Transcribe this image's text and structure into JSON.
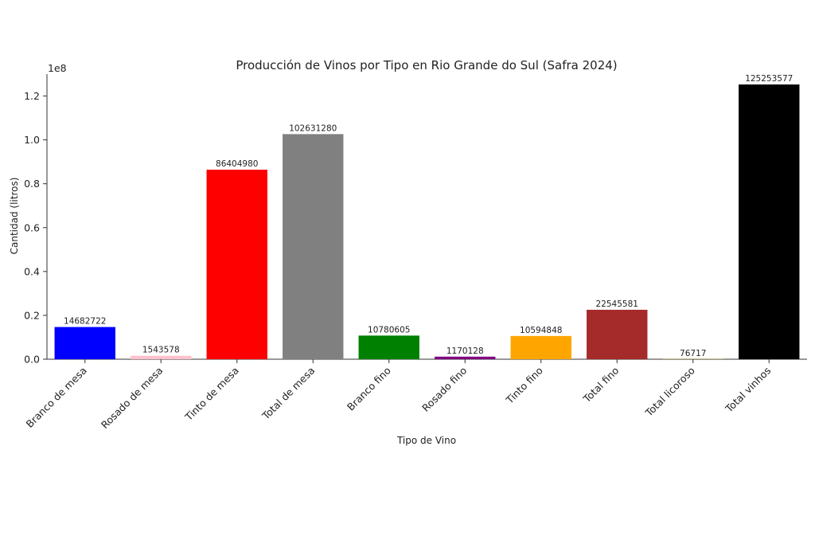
{
  "chart_data": {
    "type": "bar",
    "title": "Producción de Vinos por Tipo en Rio Grande do Sul (Safra 2024)",
    "xlabel": "Tipo de Vino",
    "ylabel": "Cantidad (litros)",
    "y_multiplier_label": "1e8",
    "ylim": [
      0,
      130000000
    ],
    "yticks": [
      0,
      20000000,
      40000000,
      60000000,
      80000000,
      100000000,
      120000000
    ],
    "ytick_labels": [
      "0.0",
      "0.2",
      "0.4",
      "0.6",
      "0.8",
      "1.0",
      "1.2"
    ],
    "categories": [
      "Branco de mesa",
      "Rosado de mesa",
      "Tinto de mesa",
      "Total de mesa",
      "Branco fino",
      "Rosado fino",
      "Tinto fino",
      "Total fino",
      "Total licoroso",
      "Total vinhos"
    ],
    "values": [
      14682722,
      1543578,
      86404980,
      102631280,
      10780605,
      1170128,
      10594848,
      22545581,
      76717,
      125253577
    ],
    "value_labels": [
      "14682722",
      "1543578",
      "86404980",
      "102631280",
      "10780605",
      "1170128",
      "10594848",
      "22545581",
      "76717",
      "125253577"
    ],
    "colors": [
      "#0000ff",
      "#ffc0cb",
      "#ff0000",
      "#808080",
      "#008000",
      "#800080",
      "#ffa500",
      "#a52a2a",
      "#ffd700",
      "#000000"
    ],
    "grid": false,
    "legend": "none"
  }
}
